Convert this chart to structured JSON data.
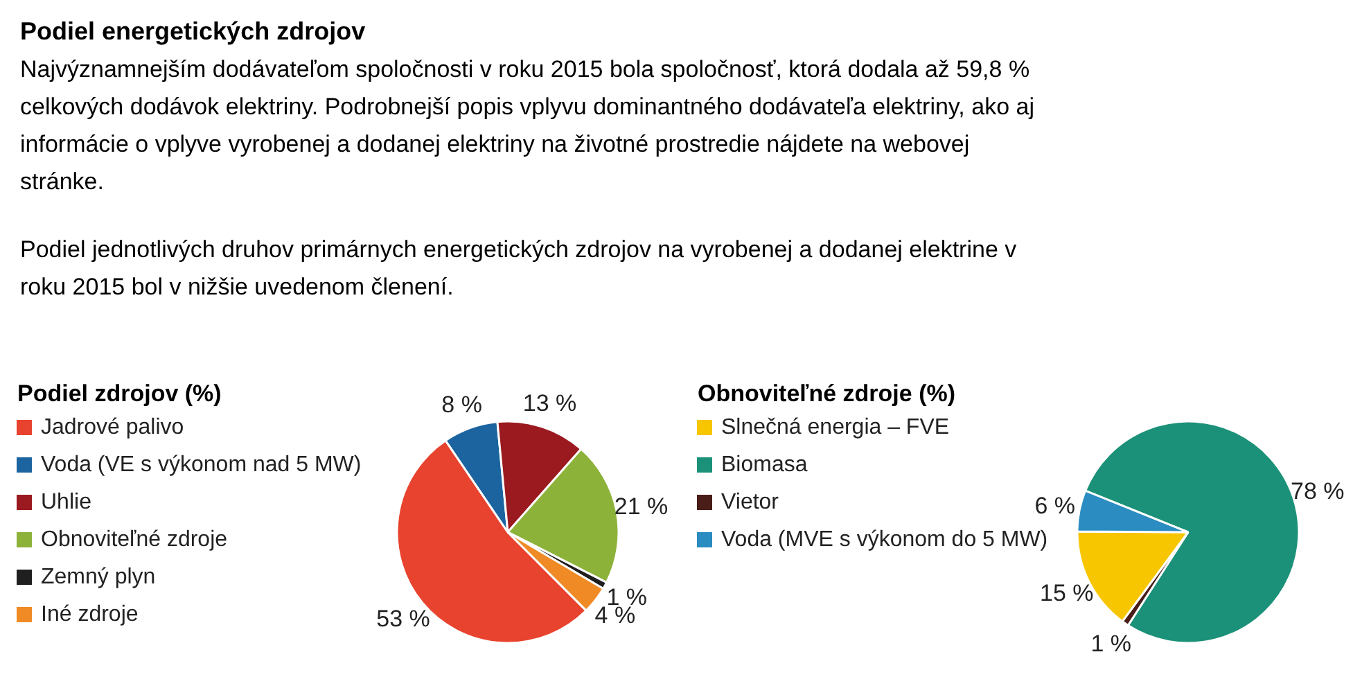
{
  "chart_data": [
    {
      "type": "other",
      "title": "Podiel energetických zdrojov",
      "annotations": [
        "Najvýznamnejším dodávateľom spoločnosti v roku 2015 bola spoločnosť, ktorá dodala až 59,8 % celkových dodávok elektriny. Podrobnejší popis vplyvu dominantného dodávateľa elektriny, ako aj informácie o vplyve vyrobenej a dodanej elektriny na životné prostredie nájdete na webovej stránke.",
        "Podiel jednotlivých druhov primárnych energetických zdrojov na vyrobenej a dodanej elektrine v roku 2015 bol v nižšie uvedenom členení."
      ]
    },
    {
      "type": "pie",
      "title": "Podiel zdrojov (%)",
      "legend": "left",
      "categories": [
        "Jadrové palivo",
        "Voda (VE s výkonom nad 5 MW)",
        "Uhlie",
        "Obnoviteľné zdroje",
        "Zemný plyn",
        "Iné zdroje"
      ],
      "values": [
        53,
        8,
        13,
        21,
        1,
        4
      ],
      "value_labels": [
        "53 %",
        "8 %",
        "13 %",
        "21 %",
        "1 %",
        "4 %"
      ],
      "colors": [
        "#e8432e",
        "#1c64a0",
        "#9a1a1f",
        "#8db23a",
        "#1f1f1f",
        "#ef8a25"
      ]
    },
    {
      "type": "pie",
      "title": "Obnoviteľné zdroje (%)",
      "legend": "left",
      "categories": [
        "Slnečná energia – FVE",
        "Biomasa",
        "Vietor",
        "Voda (MVE s výkonom do 5 MW)"
      ],
      "values": [
        15,
        78,
        1,
        6
      ],
      "value_labels": [
        "15 %",
        "78 %",
        "1 %",
        "6 %"
      ],
      "colors": [
        "#f7c600",
        "#1b9179",
        "#4a1d18",
        "#2a8cc0"
      ]
    }
  ]
}
